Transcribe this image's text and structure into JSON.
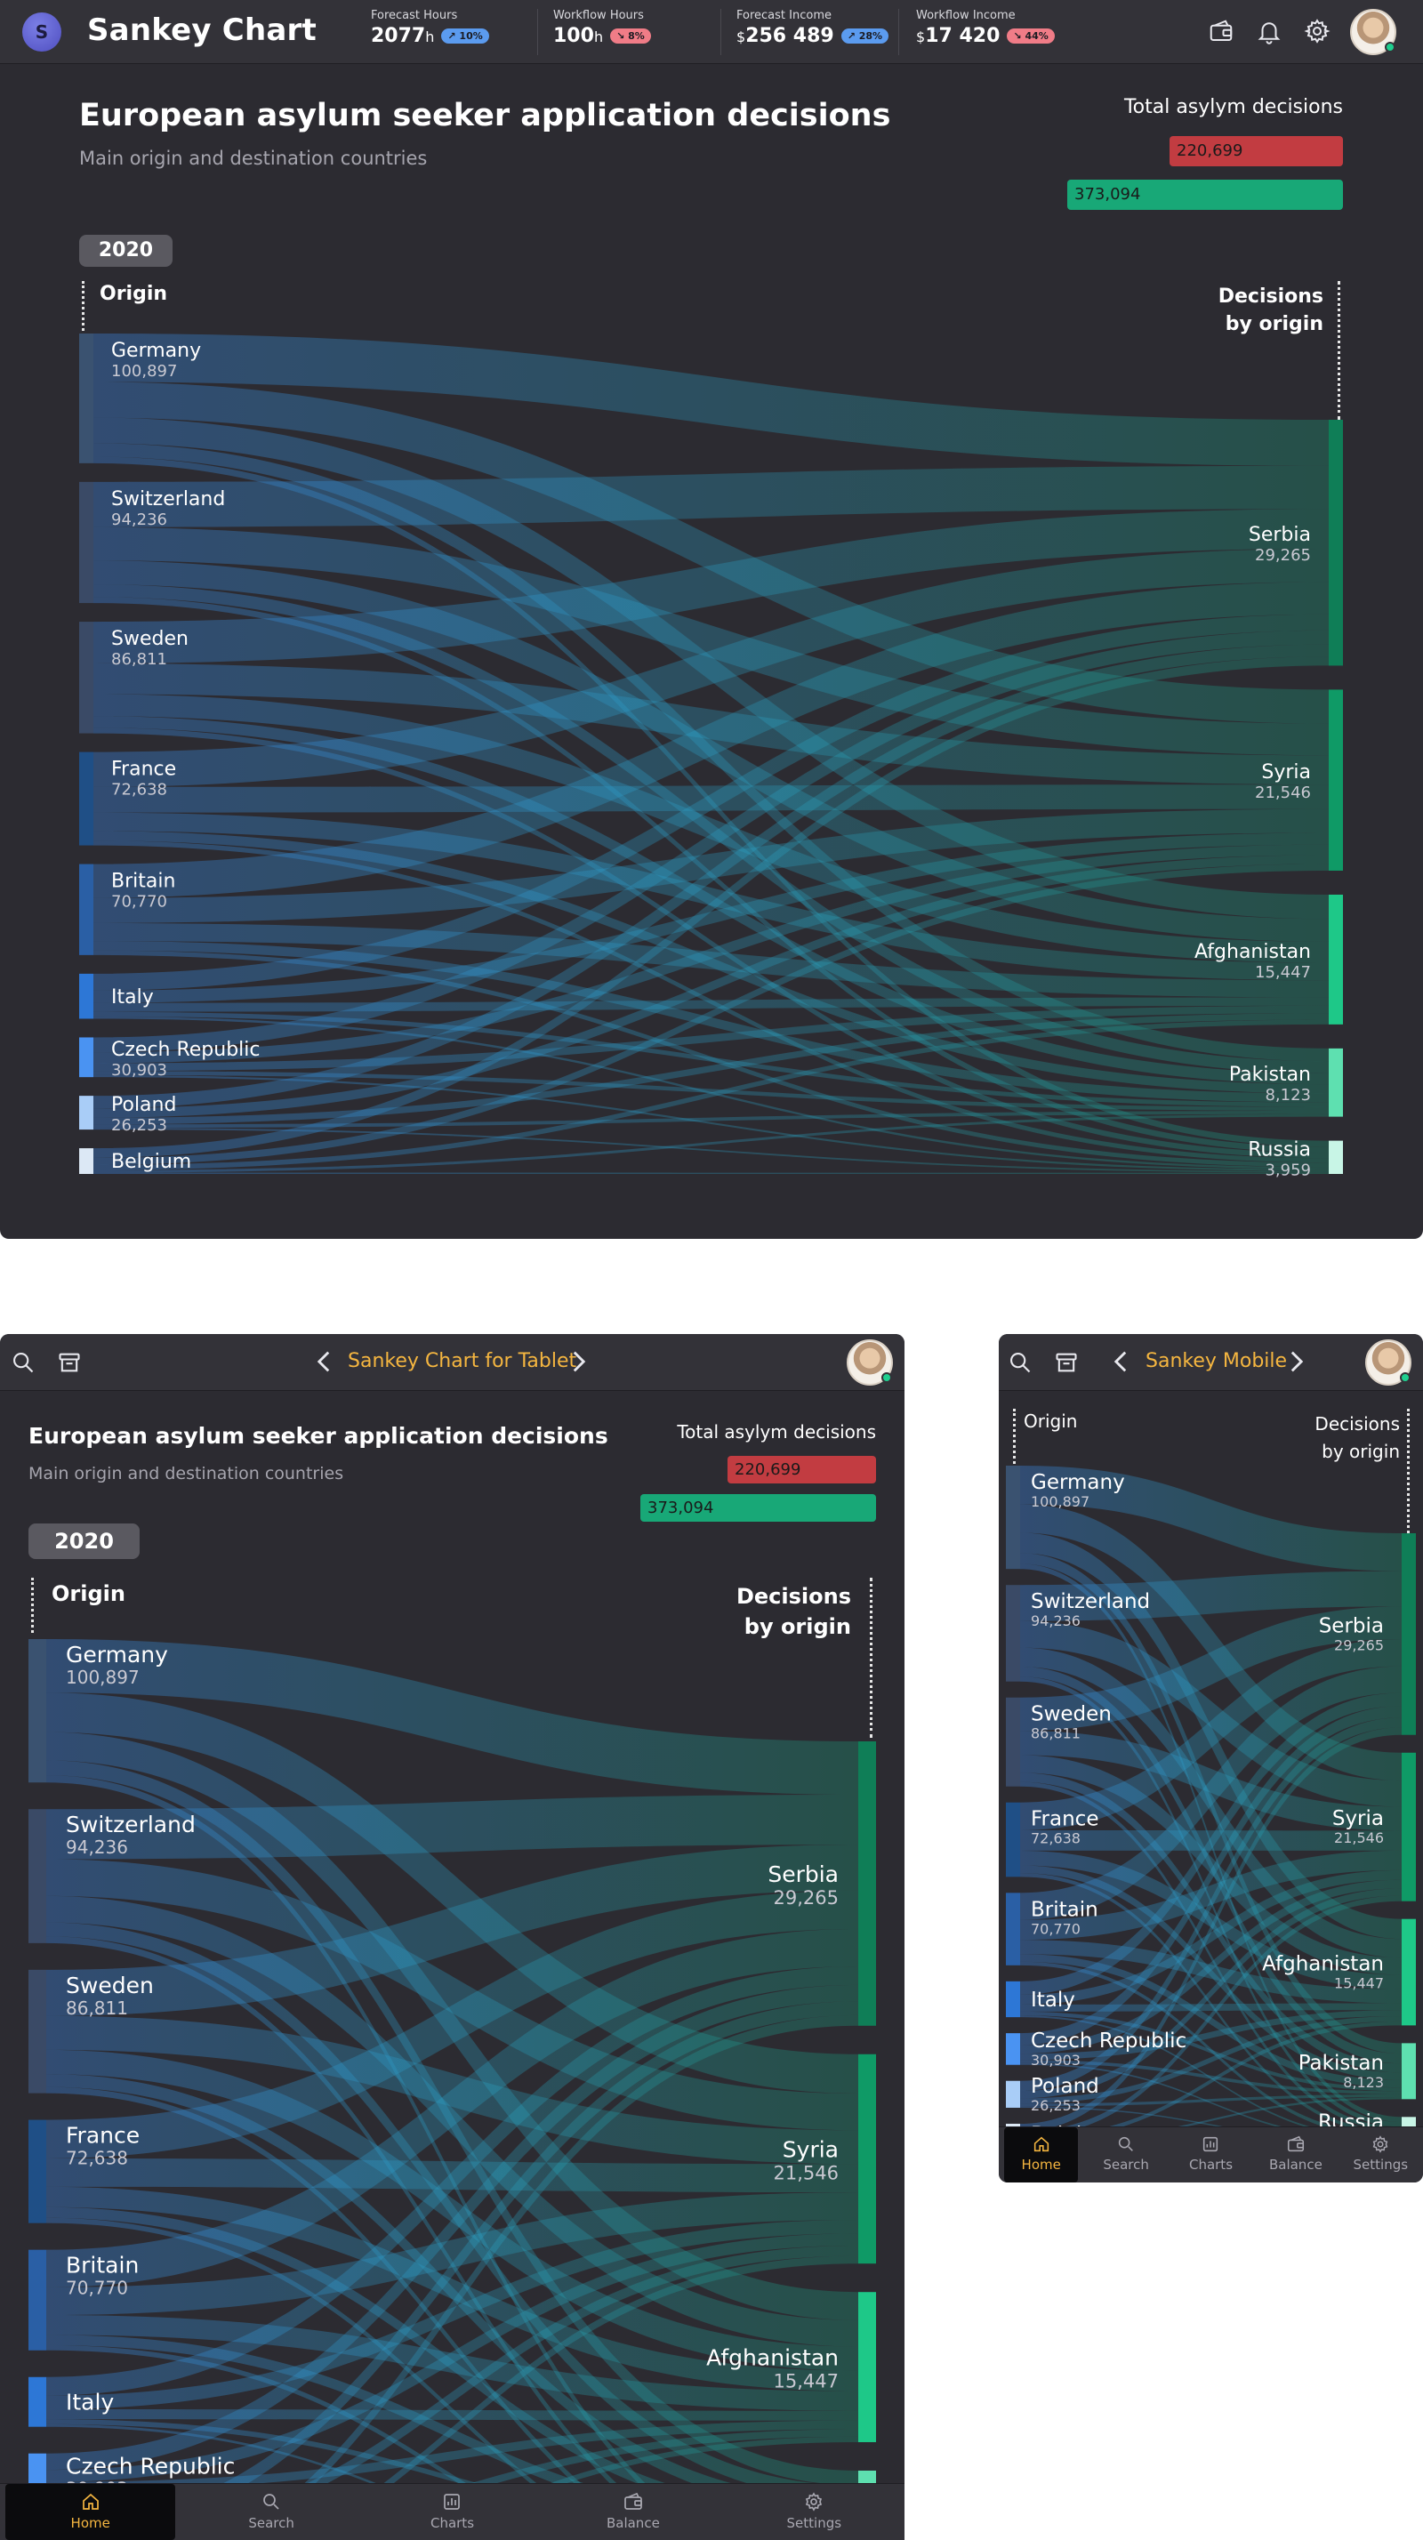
{
  "desktop": {
    "app_title": "Sankey Chart",
    "logo_letter": "S",
    "kpis": [
      {
        "label": "Forecast Hours",
        "value": "2077",
        "unit": "h",
        "badge": "10%",
        "trend": "up"
      },
      {
        "label": "Workflow Hours",
        "value": "100",
        "unit": "h",
        "badge": "8%",
        "trend": "down"
      },
      {
        "label": "Forecast Income",
        "value": "256 489",
        "prefix": "$",
        "badge": "28%",
        "trend": "up"
      },
      {
        "label": "Workflow Income",
        "value": "17 420",
        "prefix": "$",
        "badge": "44%",
        "trend": "down"
      }
    ],
    "icons": [
      "wallet-icon",
      "bell-icon",
      "gear-icon"
    ]
  },
  "tablet": {
    "nav_title": "Sankey Chart for Tablet"
  },
  "mobile": {
    "nav_title": "Sankey Mobile"
  },
  "bottom_nav": [
    {
      "label": "Home",
      "icon": "home-icon",
      "active": true
    },
    {
      "label": "Search",
      "icon": "search-icon",
      "active": false
    },
    {
      "label": "Charts",
      "icon": "chart-icon",
      "active": false
    },
    {
      "label": "Balance",
      "icon": "wallet-icon",
      "active": false
    },
    {
      "label": "Settings",
      "icon": "gear-icon",
      "active": false
    }
  ],
  "chart": {
    "title": "European asylum seeker application decisions",
    "subtitle": "Main origin and destination countries",
    "total_label": "Total asylym decisions",
    "total_red": "220,699",
    "total_green": "373,094",
    "year": "2020",
    "left_heading": "Origin",
    "right_heading_line1": "Decisions",
    "right_heading_line2": "by origin"
  },
  "chart_data": {
    "type": "sankey",
    "title": "European asylum seeker application decisions",
    "subtitle": "Main origin and destination countries",
    "year": "2020",
    "totals": [
      {
        "value": 220699,
        "display": "220,699",
        "color": "#c23c41"
      },
      {
        "value": 373094,
        "display": "373,094",
        "color": "#18a877"
      }
    ],
    "sources": [
      {
        "name": "Germany",
        "value": 100897,
        "display": "100,897",
        "color": "#3a5270"
      },
      {
        "name": "Switzerland",
        "value": 94236,
        "display": "94,236",
        "color": "#3a4a66"
      },
      {
        "name": "Sweden",
        "value": 86811,
        "display": "86,811",
        "color": "#3a4a66"
      },
      {
        "name": "France",
        "value": 72638,
        "display": "72,638",
        "color": "#1f4f86"
      },
      {
        "name": "Britain",
        "value": 70770,
        "display": "70,770",
        "color": "#2a5fa5"
      },
      {
        "name": "Italy",
        "value": 35000,
        "display": "",
        "color": "#2d77d6"
      },
      {
        "name": "Czech Republic",
        "value": 30903,
        "display": "30,903",
        "color": "#4a93f2"
      },
      {
        "name": "Poland",
        "value": 26253,
        "display": "26,253",
        "color": "#a9cdf7"
      },
      {
        "name": "Belgium",
        "value": 20000,
        "display": "",
        "color": "#dce8f5"
      }
    ],
    "targets": [
      {
        "name": "Serbia",
        "value": 29265,
        "display": "29,265",
        "color": "#0f7e57"
      },
      {
        "name": "Syria",
        "value": 21546,
        "display": "21,546",
        "color": "#0f9a66"
      },
      {
        "name": "Afghanistan",
        "value": 15447,
        "display": "15,447",
        "color": "#1ec888"
      },
      {
        "name": "Pakistan",
        "value": 8123,
        "display": "8,123",
        "color": "#5ee0b0"
      },
      {
        "name": "Russia",
        "value": 3959,
        "display": "3,959",
        "color": "#c8f5e6"
      }
    ]
  }
}
